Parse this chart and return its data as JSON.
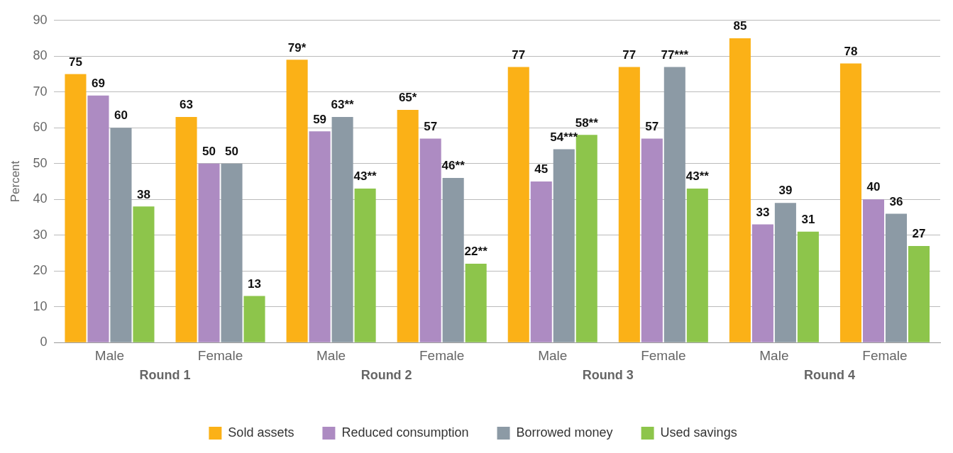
{
  "chart_data": {
    "type": "bar",
    "categories": [
      "Male",
      "Female",
      "Male",
      "Female",
      "Male",
      "Female",
      "Male",
      "Female"
    ],
    "annotations": [
      "Round 1",
      "Round 2",
      "Round 3",
      "Round 4"
    ],
    "ylabel": "Percent",
    "ylim": [
      0,
      90
    ],
    "yticks": [
      0,
      10,
      20,
      30,
      40,
      50,
      60,
      70,
      80,
      90
    ],
    "grid": "y",
    "legend": "bottom",
    "series": [
      {
        "name": "Sold assets",
        "color": "#fbb117",
        "values": [
          75,
          63,
          79,
          65,
          77,
          77,
          85,
          78
        ],
        "value_labels": [
          "75",
          "63",
          "79*",
          "65*",
          "77",
          "77",
          "85",
          "78"
        ]
      },
      {
        "name": "Reduced consumption",
        "color": "#ad8bc2",
        "values": [
          69,
          50,
          59,
          57,
          45,
          57,
          33,
          40
        ],
        "value_labels": [
          "69",
          "50",
          "59",
          "57",
          "45",
          "57",
          "33",
          "40"
        ]
      },
      {
        "name": "Borrowed money",
        "color": "#8c9aa5",
        "values": [
          60,
          50,
          63,
          46,
          54,
          77,
          39,
          36
        ],
        "value_labels": [
          "60",
          "50",
          "63**",
          "46**",
          "54***",
          "77***",
          "39",
          "36"
        ]
      },
      {
        "name": "Used savings",
        "color": "#8dc54b",
        "values": [
          38,
          13,
          43,
          22,
          58,
          43,
          31,
          27
        ],
        "value_labels": [
          "38",
          "13",
          "43**",
          "22**",
          "58**",
          "43**",
          "31",
          "27"
        ]
      }
    ]
  }
}
